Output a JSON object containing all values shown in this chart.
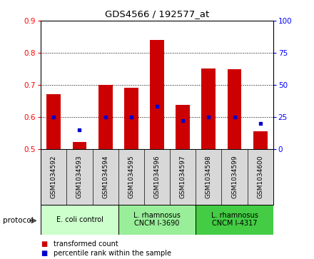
{
  "title": "GDS4566 / 192577_at",
  "samples": [
    "GSM1034592",
    "GSM1034593",
    "GSM1034594",
    "GSM1034595",
    "GSM1034596",
    "GSM1034597",
    "GSM1034598",
    "GSM1034599",
    "GSM1034600"
  ],
  "transformed_count": [
    0.67,
    0.522,
    0.7,
    0.69,
    0.84,
    0.638,
    0.75,
    0.748,
    0.555
  ],
  "percentile_rank": [
    25,
    15,
    25,
    25,
    33,
    22,
    25,
    25,
    20
  ],
  "ylim_left": [
    0.5,
    0.9
  ],
  "ylim_right": [
    0,
    100
  ],
  "yticks_left": [
    0.5,
    0.6,
    0.7,
    0.8,
    0.9
  ],
  "yticks_right": [
    0,
    25,
    50,
    75,
    100
  ],
  "bar_color": "#cc0000",
  "dot_color": "#0000cc",
  "group_starts": [
    0,
    3,
    6
  ],
  "group_ends": [
    2,
    5,
    8
  ],
  "group_colors": [
    "#ccffcc",
    "#99ee99",
    "#44cc44"
  ],
  "group_labels": [
    "E. coli control",
    "L. rhamnosus\nCNCM I-3690",
    "L. rhamnosus\nCNCM I-4317"
  ],
  "legend_bar_label": "transformed count",
  "legend_dot_label": "percentile rank within the sample",
  "bar_width": 0.55,
  "sample_box_color": "#d8d8d8"
}
